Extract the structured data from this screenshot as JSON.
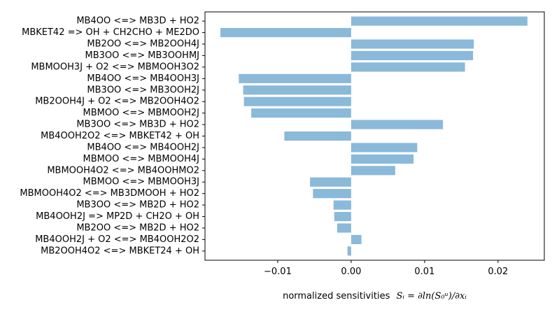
{
  "chart_data": {
    "type": "bar",
    "orientation": "horizontal",
    "categories": [
      "MB4OO <=> MB3D + HO2",
      "MBKET42 => OH + CH2CHO + ME2DO",
      "MB2OO <=> MB2OOH4J",
      "MB3OO <=> MB3OOHMJ",
      "MBMOOH3J + O2 <=> MBMOOH3O2",
      "MB4OO <=> MB4OOH3J",
      "MB3OO <=> MB3OOH2J",
      "MB2OOH4J + O2 <=> MB2OOH4O2",
      "MBMOO <=> MBMOOH2J",
      "MB3OO <=> MB3D + HO2",
      "MB4OOH2O2 <=> MBKET42 + OH",
      "MB4OO <=> MB4OOH2J",
      "MBMOO <=> MBMOOH4J",
      "MBMOOH4O2 <=> MB4OOHMO2",
      "MBMOO <=> MBMOOH3J",
      "MBMOOH4O2 <=> MB3DMOOH + HO2",
      "MB3OO <=> MB2D + HO2",
      "MB4OOH2J => MP2D + CH2O + OH",
      "MB2OO <=> MB2D + HO2",
      "MB4OOH2J + O2 <=> MB4OOH2O2",
      "MB2OOH4O2 <=> MBKET24 + OH"
    ],
    "values": [
      0.024,
      -0.0178,
      0.0167,
      0.0166,
      0.0155,
      -0.0153,
      -0.0147,
      -0.0146,
      -0.0136,
      0.0125,
      -0.0091,
      0.009,
      0.0085,
      0.006,
      -0.0056,
      -0.0052,
      -0.0024,
      -0.0023,
      -0.0019,
      0.0014,
      -0.0005
    ],
    "xticks": [
      -0.01,
      0.0,
      0.01,
      0.02
    ],
    "xtick_labels": [
      "−0.01",
      "0.00",
      "0.01",
      "0.02"
    ],
    "xlim": [
      -0.0199,
      0.0263
    ],
    "xlabel": "normalized sensitivities",
    "xlabel_formula": "Sᵢ = ∂ln(S₀ᵘ)/∂xᵢ",
    "bar_color": "#8ab9da",
    "grid": false,
    "title": ""
  }
}
